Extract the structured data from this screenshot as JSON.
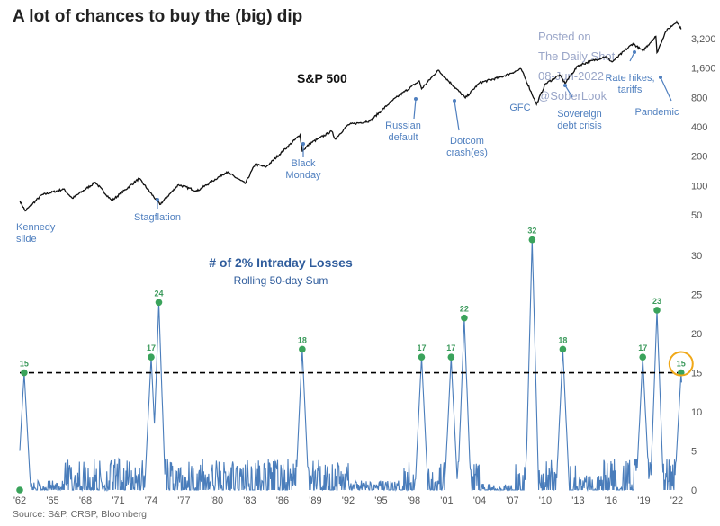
{
  "title": "A lot of chances to buy the (big) dip",
  "source": "Source: S&P, CRSP, Bloomberg",
  "watermark": {
    "line1": "Posted on",
    "line2": "The Daily Shot",
    "line3": "08-Jun-2022",
    "line4": "@SoberLook"
  },
  "colors": {
    "line": "#111111",
    "bars": "#4a7dbb",
    "points": "#3aa35b",
    "annotation": "#4f7fbf",
    "threshold": "#000000",
    "highlight": "#f0a818"
  },
  "chart_data": [
    {
      "type": "line",
      "title": "S&P 500",
      "yscale": "log",
      "yticks": [
        50,
        100,
        200,
        400,
        800,
        1600,
        3200
      ],
      "ytick_labels": [
        "50",
        "100",
        "200",
        "400",
        "800",
        "1,600",
        "3,200"
      ],
      "x": [
        1962.0,
        1962.5,
        1964,
        1966,
        1966.8,
        1968.9,
        1970.4,
        1972.9,
        1974.8,
        1976.5,
        1978.2,
        1980.9,
        1982.6,
        1983.5,
        1984.5,
        1987.6,
        1987.8,
        1988.5,
        1990.5,
        1990.8,
        1992,
        1994,
        1995,
        1996,
        1998.5,
        1998.7,
        2000.2,
        2002.7,
        2004,
        2006,
        2007.8,
        2009.2,
        2010,
        2011.3,
        2011.8,
        2013,
        2015.5,
        2016.1,
        2018,
        2018.9,
        2020.1,
        2020.2,
        2021,
        2022.0,
        2022.4
      ],
      "values": [
        70,
        55,
        80,
        92,
        74,
        108,
        70,
        118,
        64,
        102,
        88,
        138,
        105,
        165,
        155,
        330,
        225,
        270,
        360,
        300,
        420,
        460,
        580,
        740,
        1180,
        980,
        1520,
        790,
        1130,
        1300,
        1560,
        680,
        1100,
        1360,
        1120,
        1700,
        2100,
        1850,
        2850,
        2400,
        3380,
        2300,
        3800,
        4800,
        4000
      ],
      "annotations": [
        "Kennedy slide",
        "Stagflation",
        "Black Monday",
        "Russian default",
        "Dotcom crash(es)",
        "GFC",
        "Sovereign debt crisis",
        "Rate hikes, tariffs",
        "Pandemic"
      ]
    },
    {
      "type": "bar",
      "title": "# of 2% Intraday Losses",
      "subtitle": "Rolling 50-day Sum",
      "ylim": [
        0,
        33
      ],
      "yticks": [
        0,
        5,
        10,
        15,
        20,
        25,
        30
      ],
      "xticks": [
        "'62",
        "'65",
        "'68",
        "'71",
        "'74",
        "'77",
        "'80",
        "'83",
        "'86",
        "'89",
        "'92",
        "'95",
        "'98",
        "'01",
        "'04",
        "'07",
        "'10",
        "'13",
        "'16",
        "'19",
        "'22"
      ],
      "threshold": 15,
      "peaks": [
        {
          "x": 1962.0,
          "value": 0
        },
        {
          "x": 1962.4,
          "value": 15
        },
        {
          "x": 1974.0,
          "value": 17
        },
        {
          "x": 1974.7,
          "value": 24
        },
        {
          "x": 1987.8,
          "value": 18
        },
        {
          "x": 1998.7,
          "value": 17
        },
        {
          "x": 2001.4,
          "value": 17
        },
        {
          "x": 2002.6,
          "value": 22
        },
        {
          "x": 2008.8,
          "value": 32
        },
        {
          "x": 2011.6,
          "value": 18
        },
        {
          "x": 2018.9,
          "value": 17
        },
        {
          "x": 2020.2,
          "value": 23
        },
        {
          "x": 2022.4,
          "value": 15
        }
      ],
      "peak_labels": [
        "15",
        "17",
        "24",
        "18",
        "17",
        "17",
        "22",
        "32",
        "18",
        "17",
        "23",
        "15"
      ],
      "highlighted": "15"
    }
  ]
}
